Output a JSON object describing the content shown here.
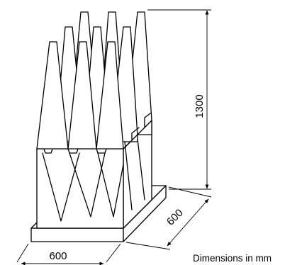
{
  "dimensions": {
    "height_label": "1300",
    "depth_label": "600",
    "width_label": "600",
    "units_note": "Dimensions in mm"
  }
}
